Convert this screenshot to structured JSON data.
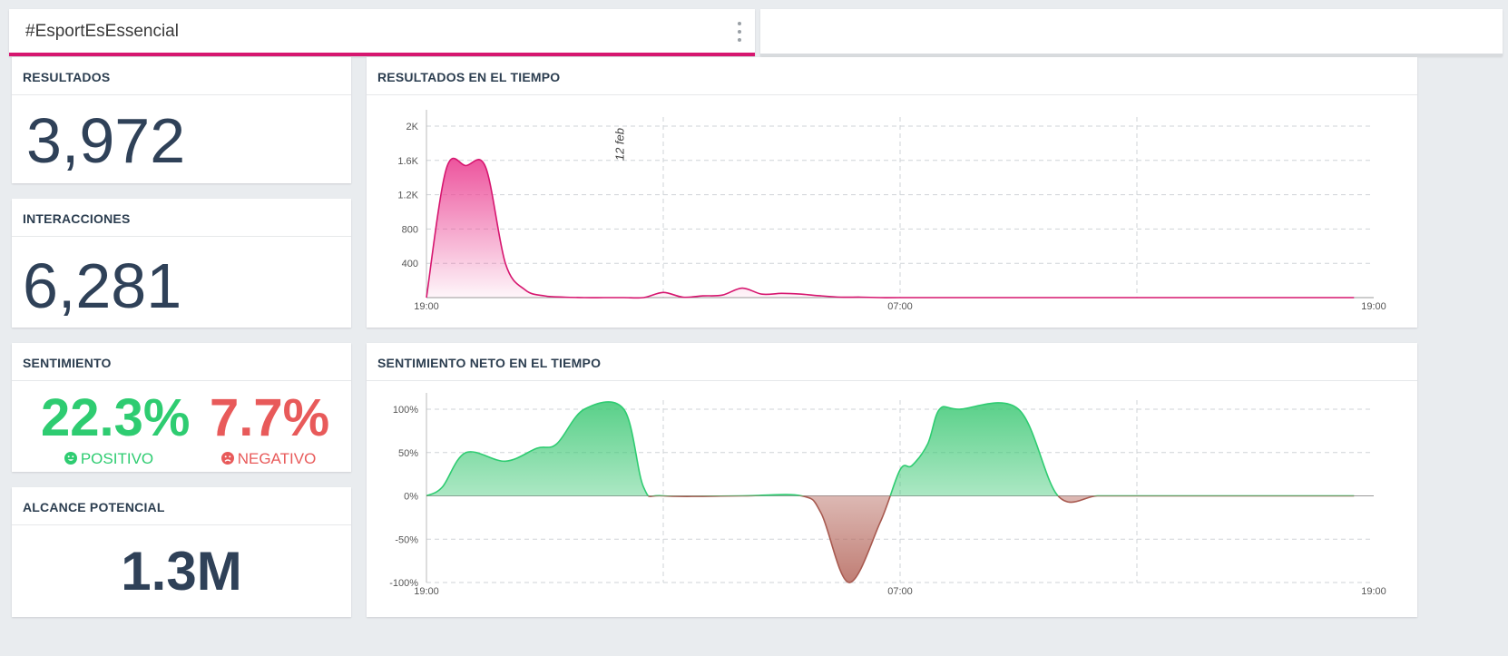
{
  "tab": {
    "label": "#EsportEsEssencial"
  },
  "cards": {
    "results": {
      "title": "RESULTADOS",
      "value": "3,972"
    },
    "interactions": {
      "title": "INTERACCIONES",
      "value": "6,281"
    },
    "sentiment": {
      "title": "SENTIMIENTO",
      "positive": {
        "value": "22.3%",
        "label": "POSITIVO"
      },
      "negative": {
        "value": "7.7%",
        "label": "NEGATIVO"
      }
    },
    "reach": {
      "title": "ALCANCE POTENCIAL",
      "value": "1.3M"
    },
    "results_time": {
      "title": "RESULTADOS EN EL TIEMPO"
    },
    "sentiment_time": {
      "title": "SENTIMIENTO NETO EN EL TIEMPO"
    }
  },
  "colors": {
    "accent": "#d6166f",
    "positive": "#2ecc71",
    "negative": "#e85a5a",
    "negative_fill": "#b5675c"
  },
  "chart_data": [
    {
      "type": "area",
      "title": "RESULTADOS EN EL TIEMPO",
      "x_hours": [
        0,
        0.5,
        1,
        1.5,
        2,
        2.5,
        3,
        3.5,
        4,
        4.5,
        5,
        5.5,
        6,
        6.5,
        7,
        7.5,
        8,
        8.5,
        9,
        9.5,
        10,
        10.5,
        11,
        11.5,
        12,
        14,
        16,
        18,
        20,
        22,
        23.5
      ],
      "values": [
        0,
        1500,
        1540,
        1520,
        400,
        90,
        20,
        5,
        0,
        0,
        0,
        0,
        60,
        5,
        20,
        30,
        110,
        40,
        50,
        40,
        20,
        5,
        5,
        0,
        0,
        0,
        0,
        0,
        0,
        0,
        0
      ],
      "ylim": [
        0,
        2000
      ],
      "yticks": [
        400,
        800,
        1200,
        1600,
        2000
      ],
      "ytick_labels": [
        "400",
        "800",
        "1.2K",
        "1.6K",
        "2K"
      ],
      "xticks": [
        0,
        12,
        24
      ],
      "xtick_labels": [
        "19:00",
        "07:00",
        "19:00"
      ],
      "annotation": "12 feb",
      "annotation_x": 5
    },
    {
      "type": "area",
      "title": "SENTIMIENTO NETO EN EL TIEMPO",
      "x_hours": [
        0,
        0.4,
        1,
        2,
        2.8,
        3.3,
        4,
        5,
        5.5,
        6,
        8,
        9.5,
        10,
        10.7,
        11.5,
        12,
        12.3,
        12.7,
        13,
        13.5,
        15,
        16,
        17,
        18,
        20,
        22,
        23.5
      ],
      "values": [
        0,
        10,
        50,
        40,
        55,
        60,
        100,
        100,
        10,
        0,
        0,
        0,
        -20,
        -100,
        -30,
        30,
        35,
        60,
        100,
        100,
        100,
        0,
        0,
        0,
        0,
        0,
        0
      ],
      "ylim": [
        -100,
        100
      ],
      "yticks": [
        -100,
        -50,
        0,
        50,
        100
      ],
      "ytick_labels": [
        "-100%",
        "-50%",
        "0%",
        "50%",
        "100%"
      ],
      "xticks": [
        0,
        12,
        24
      ],
      "xtick_labels": [
        "19:00",
        "07:00",
        "19:00"
      ]
    }
  ]
}
